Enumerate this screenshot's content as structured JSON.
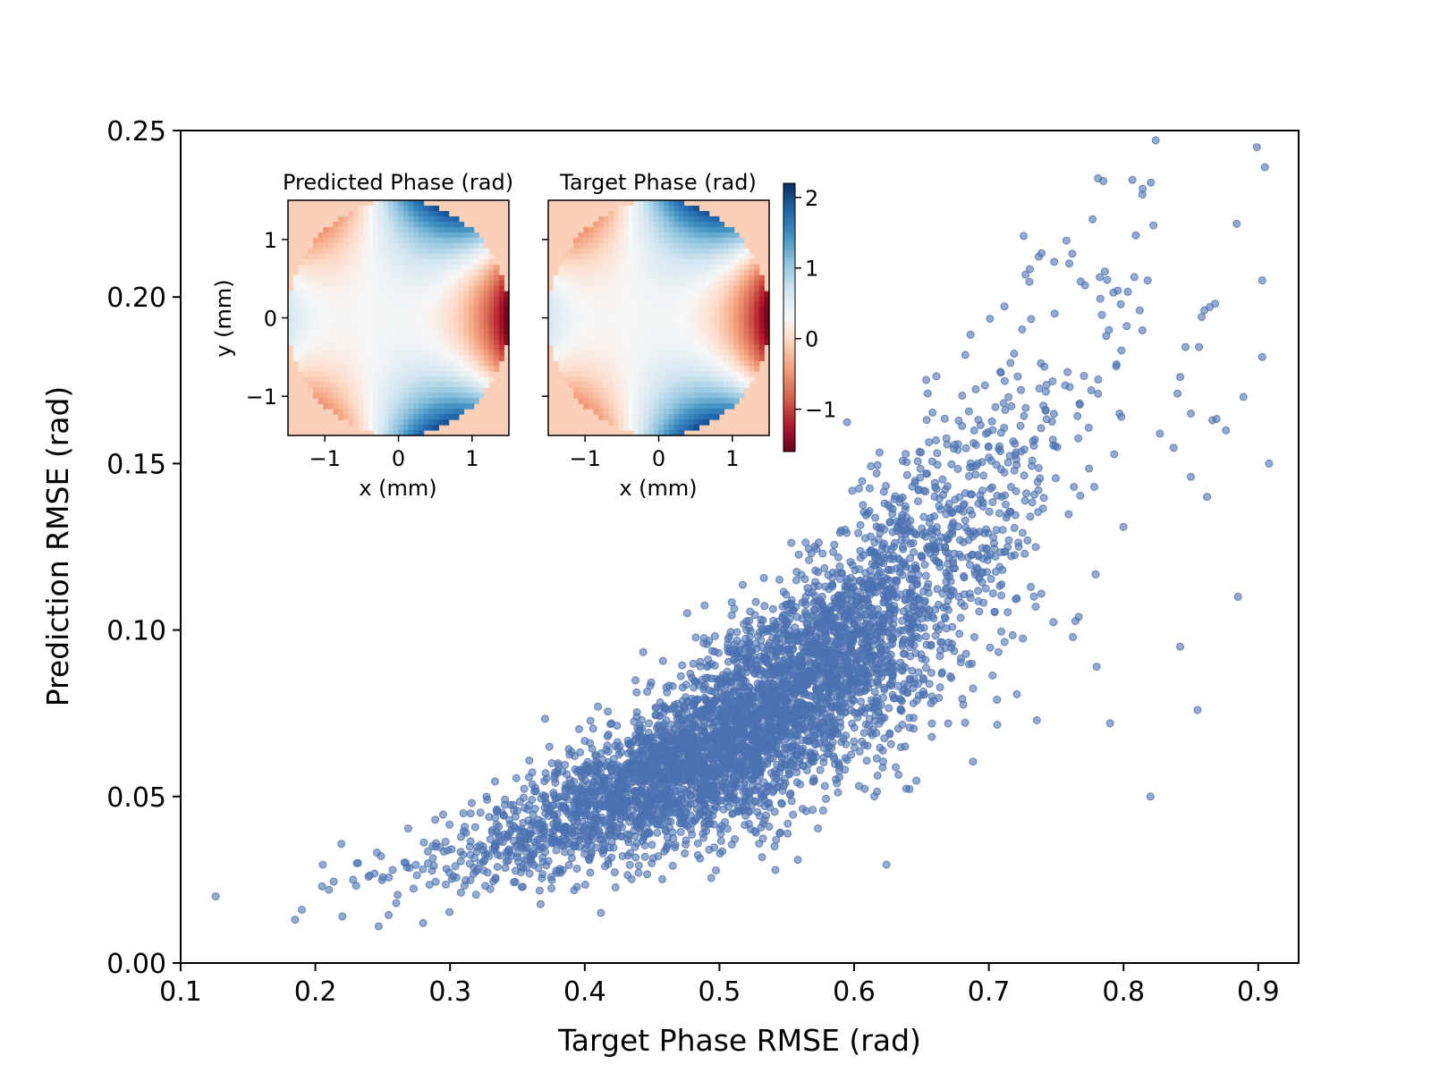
{
  "chart_data": [
    {
      "type": "scatter",
      "name": "main",
      "xlabel": "Target Phase RMSE (rad)",
      "ylabel": "Prediction RMSE (rad)",
      "xlim": [
        0.1,
        0.93
      ],
      "ylim": [
        0.0,
        0.25
      ],
      "xticks": [
        0.1,
        0.2,
        0.3,
        0.4,
        0.5,
        0.6,
        0.7,
        0.8,
        0.9
      ],
      "xtick_labels": [
        "0.1",
        "0.2",
        "0.3",
        "0.4",
        "0.5",
        "0.6",
        "0.7",
        "0.8",
        "0.9"
      ],
      "yticks": [
        0.0,
        0.05,
        0.1,
        0.15,
        0.2,
        0.25
      ],
      "ytick_labels": [
        "0.00",
        "0.05",
        "0.10",
        "0.15",
        "0.20",
        "0.25"
      ],
      "marker_color": "#4c72b0",
      "marker_opacity": 0.6,
      "series": [
        {
          "name": "samples",
          "trend": "dense cloud following y ≈ 0.0115·exp(3.5·x); n ≈ 5000",
          "points": [
            [
              0.126,
              0.02
            ],
            [
              0.185,
              0.013
            ],
            [
              0.19,
              0.016
            ],
            [
              0.205,
              0.023
            ],
            [
              0.21,
              0.022
            ],
            [
              0.22,
              0.014
            ],
            [
              0.228,
              0.025
            ],
            [
              0.247,
              0.011
            ],
            [
              0.26,
              0.018
            ],
            [
              0.28,
              0.012
            ],
            [
              0.76,
              0.173
            ],
            [
              0.776,
              0.172
            ],
            [
              0.797,
              0.165
            ],
            [
              0.808,
              0.206
            ],
            [
              0.812,
              0.196
            ],
            [
              0.814,
              0.19
            ],
            [
              0.818,
              0.205
            ],
            [
              0.827,
              0.159
            ],
            [
              0.84,
              0.171
            ],
            [
              0.842,
              0.176
            ],
            [
              0.846,
              0.185
            ],
            [
              0.85,
              0.165
            ],
            [
              0.856,
              0.185
            ],
            [
              0.858,
              0.194
            ],
            [
              0.86,
              0.196
            ],
            [
              0.864,
              0.197
            ],
            [
              0.866,
              0.163
            ],
            [
              0.868,
              0.198
            ],
            [
              0.876,
              0.16
            ],
            [
              0.885,
              0.11
            ],
            [
              0.884,
              0.222
            ],
            [
              0.889,
              0.17
            ],
            [
              0.899,
              0.245
            ],
            [
              0.903,
              0.205
            ],
            [
              0.903,
              0.182
            ],
            [
              0.905,
              0.239
            ],
            [
              0.908,
              0.15
            ],
            [
              0.855,
              0.076
            ],
            [
              0.82,
              0.05
            ],
            [
              0.842,
              0.095
            ],
            [
              0.79,
              0.072
            ],
            [
              0.78,
              0.089
            ],
            [
              0.85,
              0.146
            ],
            [
              0.862,
              0.14
            ],
            [
              0.8,
              0.131
            ]
          ]
        }
      ]
    },
    {
      "type": "heatmap",
      "name": "inset-predicted",
      "title": "Predicted Phase (rad)",
      "xlabel": "x (mm)",
      "ylabel": "y (mm)",
      "xlim": [
        -1.5,
        1.5
      ],
      "ylim": [
        -1.5,
        1.5
      ],
      "xticks": [
        -1,
        0,
        1
      ],
      "xtick_labels": [
        "−1",
        "0",
        "1"
      ],
      "yticks": [
        1,
        0,
        -1
      ],
      "ytick_labels": [
        "1",
        "0",
        "−1"
      ],
      "aperture_radius_mm": 1.5,
      "colormap": "RdBu",
      "field": "0.35 - 0.85*(x^2-y^2)/2.25 - 1.15*((x^3-3xy^2)/3.375)"
    },
    {
      "type": "heatmap",
      "name": "inset-target",
      "title": "Target Phase (rad)",
      "xlabel": "x (mm)",
      "xlim": [
        -1.5,
        1.5
      ],
      "ylim": [
        -1.5,
        1.5
      ],
      "xticks": [
        -1,
        0,
        1
      ],
      "xtick_labels": [
        "−1",
        "0",
        "1"
      ],
      "colormap": "RdBu",
      "colorbar": {
        "min": -1.6,
        "max": 2.2,
        "ticks": [
          2,
          1,
          0,
          -1
        ],
        "tick_labels": [
          "2",
          "1",
          "0",
          "−1"
        ]
      }
    }
  ]
}
